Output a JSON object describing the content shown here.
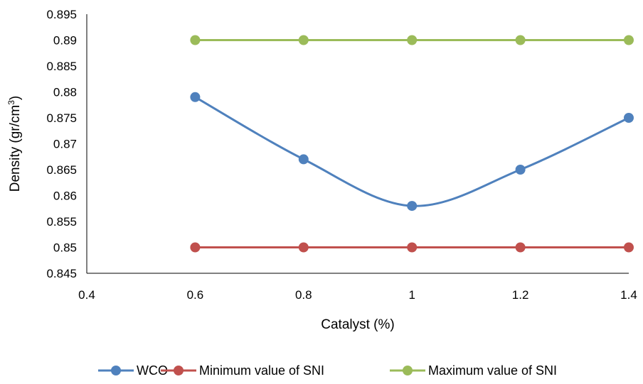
{
  "chart_data": {
    "type": "line",
    "title": "",
    "xlabel": "Catalyst (%)",
    "ylabel": {
      "main": "Density (gr/cm",
      "sup": "3",
      "end": ")"
    },
    "xlim": [
      0.4,
      1.4
    ],
    "ylim": [
      0.845,
      0.895
    ],
    "x_ticks": [
      "0.4",
      "0.6",
      "0.8",
      "1",
      "1.2",
      "1.4"
    ],
    "y_ticks": [
      "0.845",
      "0.85",
      "0.855",
      "0.86",
      "0.865",
      "0.87",
      "0.875",
      "0.88",
      "0.885",
      "0.89",
      "0.895"
    ],
    "grid": false,
    "legend_position": "bottom",
    "x": [
      0.6,
      0.8,
      1.0,
      1.2,
      1.4
    ],
    "series": [
      {
        "name": "WCO",
        "color": "#4f81bd",
        "smooth": true,
        "values": [
          0.879,
          0.867,
          0.858,
          0.865,
          0.875
        ]
      },
      {
        "name": "Minimum value of SNI",
        "color": "#c0504d",
        "smooth": false,
        "values": [
          0.85,
          0.85,
          0.85,
          0.85,
          0.85
        ]
      },
      {
        "name": "Maximum value of SNI",
        "color": "#9bbb59",
        "smooth": false,
        "values": [
          0.89,
          0.89,
          0.89,
          0.89,
          0.89
        ]
      }
    ]
  }
}
